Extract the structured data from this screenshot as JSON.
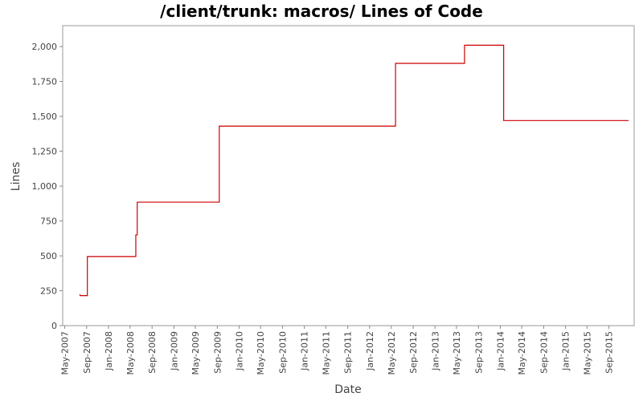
{
  "chart_data": {
    "type": "line",
    "title": "/client/trunk: macros/ Lines of Code",
    "xlabel": "Date",
    "ylabel": "Lines",
    "line_color": "#cc0000",
    "grid": false,
    "step": true,
    "x_range": [
      "2007-04-20",
      "2016-01-20"
    ],
    "ylim": [
      0,
      2150
    ],
    "y_ticks": [
      {
        "value": 0,
        "label": "0"
      },
      {
        "value": 250,
        "label": "250"
      },
      {
        "value": 500,
        "label": "500"
      },
      {
        "value": 750,
        "label": "750"
      },
      {
        "value": 1000,
        "label": "1,000"
      },
      {
        "value": 1250,
        "label": "1,250"
      },
      {
        "value": 1500,
        "label": "1,500"
      },
      {
        "value": 1750,
        "label": "1,750"
      },
      {
        "value": 2000,
        "label": "2,000"
      }
    ],
    "x_ticks": [
      {
        "date": "2007-05-01",
        "label": "May-2007"
      },
      {
        "date": "2007-09-01",
        "label": "Sep-2007"
      },
      {
        "date": "2008-01-01",
        "label": "Jan-2008"
      },
      {
        "date": "2008-05-01",
        "label": "May-2008"
      },
      {
        "date": "2008-09-01",
        "label": "Sep-2008"
      },
      {
        "date": "2009-01-01",
        "label": "Jan-2009"
      },
      {
        "date": "2009-05-01",
        "label": "May-2009"
      },
      {
        "date": "2009-09-01",
        "label": "Sep-2009"
      },
      {
        "date": "2010-01-01",
        "label": "Jan-2010"
      },
      {
        "date": "2010-05-01",
        "label": "May-2010"
      },
      {
        "date": "2010-09-01",
        "label": "Sep-2010"
      },
      {
        "date": "2011-01-01",
        "label": "Jan-2011"
      },
      {
        "date": "2011-05-01",
        "label": "May-2011"
      },
      {
        "date": "2011-09-01",
        "label": "Sep-2011"
      },
      {
        "date": "2012-01-01",
        "label": "Jan-2012"
      },
      {
        "date": "2012-05-01",
        "label": "May-2012"
      },
      {
        "date": "2012-09-01",
        "label": "Sep-2012"
      },
      {
        "date": "2013-01-01",
        "label": "Jan-2013"
      },
      {
        "date": "2013-05-01",
        "label": "May-2013"
      },
      {
        "date": "2013-09-01",
        "label": "Sep-2013"
      },
      {
        "date": "2014-01-01",
        "label": "Jan-2014"
      },
      {
        "date": "2014-05-01",
        "label": "May-2014"
      },
      {
        "date": "2014-09-01",
        "label": "Sep-2014"
      },
      {
        "date": "2015-01-01",
        "label": "Jan-2015"
      },
      {
        "date": "2015-05-01",
        "label": "May-2015"
      },
      {
        "date": "2015-09-01",
        "label": "Sep-2015"
      }
    ],
    "series": [
      {
        "points": [
          {
            "x": "2007-07-25",
            "y": 225
          },
          {
            "x": "2007-07-27",
            "y": 215
          },
          {
            "x": "2007-09-05",
            "y": 215
          },
          {
            "x": "2007-09-05",
            "y": 495
          },
          {
            "x": "2008-06-02",
            "y": 495
          },
          {
            "x": "2008-06-02",
            "y": 650
          },
          {
            "x": "2008-06-10",
            "y": 650
          },
          {
            "x": "2008-06-10",
            "y": 885
          },
          {
            "x": "2009-09-12",
            "y": 885
          },
          {
            "x": "2009-09-12",
            "y": 1430
          },
          {
            "x": "2012-05-25",
            "y": 1430
          },
          {
            "x": "2012-05-25",
            "y": 1880
          },
          {
            "x": "2013-06-15",
            "y": 1880
          },
          {
            "x": "2013-06-15",
            "y": 2010
          },
          {
            "x": "2014-01-20",
            "y": 2010
          },
          {
            "x": "2014-01-20",
            "y": 1470
          },
          {
            "x": "2015-12-20",
            "y": 1470
          }
        ]
      }
    ]
  }
}
